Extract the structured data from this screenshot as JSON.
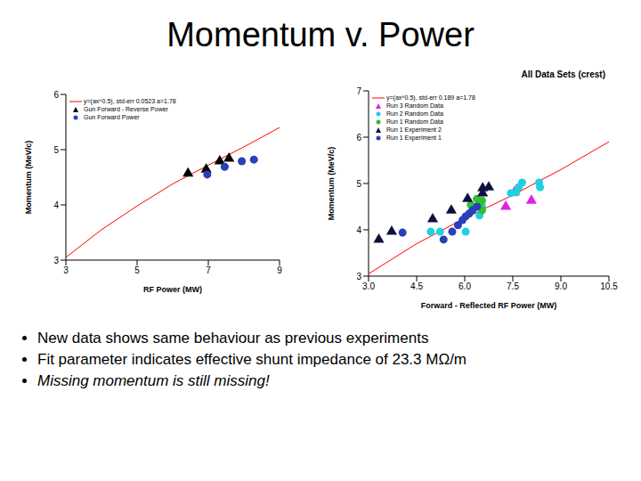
{
  "title": "Momentum v. Power",
  "bullets": [
    "New data shows same behaviour as previous experiments",
    "Fit parameter indicates effective shunt impedance of 23.3 MΩ/m",
    "Missing momentum is still missing!"
  ],
  "chart_data": [
    {
      "type": "scatter",
      "x_label": "RF Power (MW)",
      "y_label": "Momentum (MeV/c)",
      "xlim": [
        3,
        9
      ],
      "ylim": [
        3,
        6
      ],
      "xticks": [
        3,
        5,
        7,
        9
      ],
      "yticks": [
        3,
        4,
        5,
        6
      ],
      "legend": "upper left",
      "series": [
        {
          "name": "y=(ax^0.5), std-err 0.0523 a=1.78",
          "type": "line",
          "color": "#ff0000",
          "x": [
            3,
            4,
            5,
            6,
            7,
            8,
            9
          ],
          "values": [
            3.05,
            3.55,
            3.98,
            4.38,
            4.72,
            5.05,
            5.4
          ]
        },
        {
          "name": "Gun Forward - Reverse Power",
          "color": "#000000",
          "marker": "triangle",
          "x": [
            6.43,
            6.94,
            7.32,
            7.58
          ],
          "values": [
            4.57,
            4.64,
            4.79,
            4.84
          ]
        },
        {
          "name": "Gun Forward Power",
          "color": "#2a3fb8",
          "marker": "circle",
          "x": [
            6.97,
            7.46,
            7.94,
            8.28
          ],
          "values": [
            4.55,
            4.69,
            4.79,
            4.82
          ]
        }
      ]
    },
    {
      "type": "scatter",
      "title": "All Data Sets (crest)",
      "x_label": "Forward - Reflected RF Power (MW)",
      "y_label": "Momentum (MeV/c)",
      "xlim": [
        3,
        10.5
      ],
      "ylim": [
        3,
        7
      ],
      "xticks": [
        {
          "value": 3,
          "label": "3.0"
        },
        {
          "value": 4.5,
          "label": "4.5"
        },
        {
          "value": 6,
          "label": "6.0"
        },
        {
          "value": 7.5,
          "label": "7.5"
        },
        {
          "value": 9,
          "label": "9.0"
        },
        {
          "value": 10.5,
          "label": "10.5"
        }
      ],
      "yticks": [
        3,
        4,
        5,
        6,
        7
      ],
      "legend": "upper left",
      "series": [
        {
          "name": "y=(ax^0.5), std-err 0.189 a=1.78",
          "type": "line",
          "color": "#ff0000",
          "x": [
            3,
            4.5,
            6,
            7.5,
            9,
            10.5
          ],
          "values": [
            3.05,
            3.7,
            4.25,
            4.75,
            5.3,
            5.9
          ]
        },
        {
          "name": "Run 3 Random Data",
          "color": "#e020e0",
          "marker": "triangle",
          "x": [
            7.28,
            8.08,
            7.55
          ],
          "values": [
            4.5,
            4.63,
            4.81
          ]
        },
        {
          "name": "Run 2 Random Data",
          "color": "#20d0e0",
          "marker": "circle",
          "x": [
            4.94,
            5.23,
            6.03,
            6.46,
            6.54,
            7.44,
            7.6,
            7.68,
            7.79,
            8.32,
            8.35
          ],
          "values": [
            3.96,
            3.96,
            3.96,
            4.31,
            4.5,
            4.79,
            4.81,
            4.92,
            5.02,
            5.02,
            4.92
          ]
        },
        {
          "name": "Run 1 Random Data",
          "color": "#30c030",
          "marker": "circle",
          "x": [
            6.19,
            6.46,
            6.54,
            6.38,
            6.54
          ],
          "values": [
            4.54,
            4.56,
            4.63,
            4.67,
            4.42
          ]
        },
        {
          "name": "Run 1 Experiment 2",
          "color": "#101040",
          "marker": "triangle",
          "x": [
            3.32,
            3.72,
            5.0,
            5.58,
            6.09,
            6.56,
            6.75,
            6.56
          ],
          "values": [
            3.79,
            3.96,
            4.23,
            4.42,
            4.67,
            4.9,
            4.92,
            4.79
          ]
        },
        {
          "name": "Run 1 Experiment 1",
          "color": "#2a3fb8",
          "marker": "circle",
          "x": [
            4.06,
            5.34,
            5.61,
            5.79,
            5.93,
            6.03,
            6.14,
            6.24,
            6.38
          ],
          "values": [
            3.94,
            3.79,
            3.96,
            4.1,
            4.21,
            4.29,
            4.35,
            4.42,
            4.5
          ]
        }
      ]
    }
  ]
}
